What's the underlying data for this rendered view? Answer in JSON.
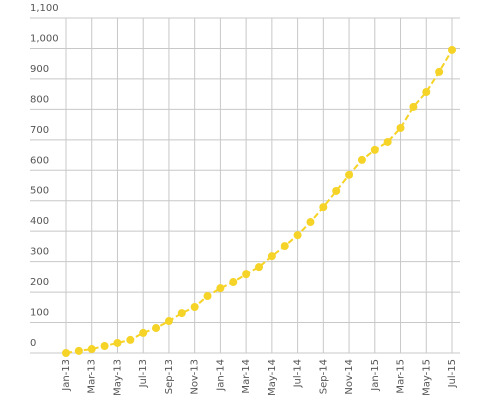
{
  "chart_data": {
    "type": "line",
    "categories": [
      "Jan-13",
      null,
      "Mar-13",
      null,
      "May-13",
      null,
      "Jul-13",
      null,
      "Sep-13",
      null,
      "Nov-13",
      null,
      "Jan-14",
      null,
      "Mar-14",
      null,
      "May-14",
      null,
      "Jul-14",
      null,
      "Sep-14",
      null,
      "Nov-14",
      null,
      "Jan-15",
      null,
      "Mar-15",
      null,
      "May-15",
      null,
      "Jul-15"
    ],
    "series": [
      {
        "color": "#f5d327",
        "values": [
          0,
          7,
          13,
          23,
          33,
          43,
          66,
          82,
          105,
          131,
          151,
          187,
          213,
          233,
          259,
          282,
          318,
          351,
          387,
          430,
          479,
          532,
          585,
          634,
          667,
          693,
          739,
          808,
          857,
          923,
          995
        ]
      }
    ],
    "ylim": [
      0,
      1100
    ],
    "yticks": [
      0,
      100,
      200,
      300,
      400,
      500,
      600,
      700,
      800,
      900,
      {
        "value": 1000,
        "label": "1,000"
      },
      {
        "value": 1100,
        "label": "1,100"
      }
    ],
    "grid": true,
    "line_style": "dashed",
    "markers": true
  }
}
